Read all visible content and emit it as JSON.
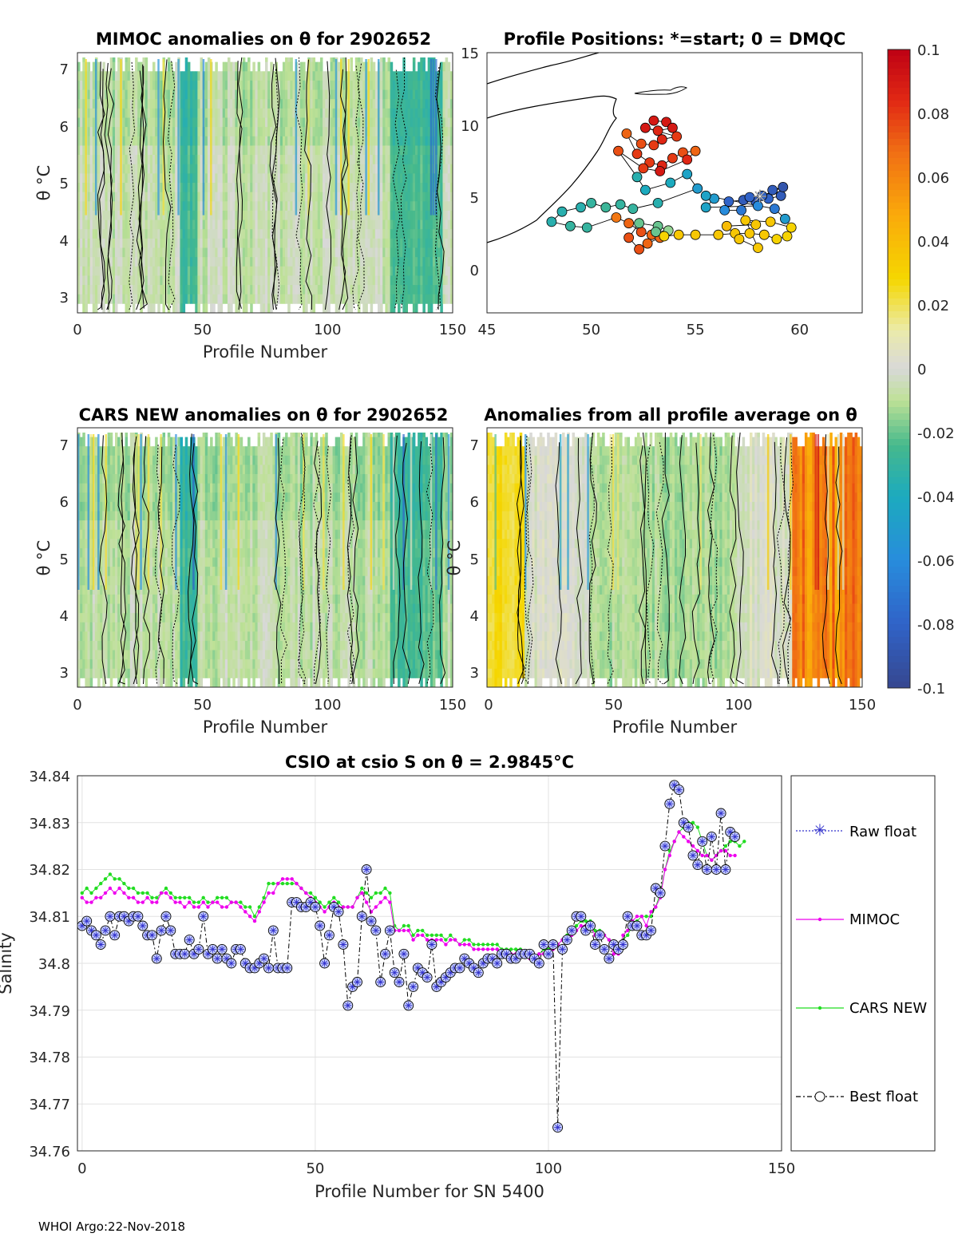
{
  "footer": "WHOI Argo:22-Nov-2018",
  "colorbar": {
    "ticks": [
      "0.1",
      "0.08",
      "0.06",
      "0.04",
      "0.02",
      "0",
      "-0.02",
      "-0.04",
      "-0.06",
      "-0.08",
      "-0.1"
    ],
    "range": [
      -0.1,
      0.1
    ]
  },
  "chart_data": [
    {
      "id": "mimoc",
      "type": "heatmap",
      "title": "MIMOC anomalies on θ  for 2902652",
      "xlabel": "Profile Number",
      "ylabel": "θ °C",
      "xticks": [
        "0",
        "50",
        "100",
        "150"
      ],
      "yticks": [
        "3",
        "4",
        "5",
        "6",
        "7"
      ],
      "xlim": [
        0,
        150
      ],
      "ylim": [
        2.75,
        7.3
      ],
      "seed": 3,
      "bias": -0.006,
      "ampl": 0.012
    },
    {
      "id": "positions",
      "type": "scatter",
      "title": "Profile Positions: *=start; 0 = DMQC",
      "xticks": [
        "45",
        "50",
        "55",
        "60"
      ],
      "yticks": [
        "0",
        "5",
        "10",
        "15"
      ],
      "xlim": [
        45,
        63
      ],
      "ylim": [
        -3,
        15
      ],
      "points": [
        [
          53.0,
          10.3,
          0.09
        ],
        [
          53.6,
          10.2,
          0.09
        ],
        [
          53.9,
          9.8,
          0.09
        ],
        [
          53.2,
          9.6,
          0.085
        ],
        [
          52.6,
          9.8,
          0.09
        ],
        [
          54.1,
          9.2,
          0.08
        ],
        [
          53.4,
          9.0,
          0.085
        ],
        [
          53.0,
          8.6,
          0.08
        ],
        [
          52.4,
          8.7,
          0.075
        ],
        [
          51.7,
          9.4,
          0.07
        ],
        [
          52.2,
          8.0,
          0.08
        ],
        [
          52.8,
          7.4,
          0.08
        ],
        [
          53.4,
          7.2,
          0.085
        ],
        [
          53.9,
          7.7,
          0.08
        ],
        [
          54.4,
          8.1,
          0.075
        ],
        [
          55.0,
          8.2,
          0.07
        ],
        [
          54.6,
          7.6,
          0.085
        ],
        [
          53.3,
          6.8,
          0.09
        ],
        [
          52.5,
          7.0,
          0.08
        ],
        [
          51.3,
          8.2,
          0.075
        ],
        [
          52.2,
          6.4,
          -0.035
        ],
        [
          52.6,
          5.5,
          -0.04
        ],
        [
          53.8,
          6.0,
          -0.04
        ],
        [
          54.6,
          6.6,
          -0.045
        ],
        [
          55.1,
          5.6,
          -0.05
        ],
        [
          53.2,
          4.6,
          -0.035
        ],
        [
          52.0,
          4.2,
          -0.03
        ],
        [
          51.4,
          4.5,
          -0.03
        ],
        [
          50.7,
          4.3,
          -0.028
        ],
        [
          50.0,
          4.6,
          -0.03
        ],
        [
          49.5,
          4.3,
          -0.035
        ],
        [
          48.6,
          4.0,
          -0.035
        ],
        [
          48.1,
          3.3,
          -0.035
        ],
        [
          49.0,
          3.0,
          -0.03
        ],
        [
          49.8,
          2.9,
          -0.03
        ],
        [
          51.2,
          3.6,
          0.065
        ],
        [
          51.8,
          3.2,
          0.07
        ],
        [
          52.4,
          2.6,
          0.075
        ],
        [
          52.9,
          2.4,
          0.07
        ],
        [
          53.3,
          2.2,
          0.07
        ],
        [
          52.7,
          1.8,
          0.07
        ],
        [
          52.3,
          1.4,
          0.075
        ],
        [
          51.8,
          2.2,
          0.075
        ],
        [
          52.3,
          3.2,
          -0.02
        ],
        [
          53.2,
          3.0,
          -0.02
        ],
        [
          53.7,
          2.7,
          -0.015
        ],
        [
          53.1,
          2.6,
          -0.02
        ],
        [
          53.5,
          2.3,
          0.03
        ],
        [
          54.2,
          2.4,
          0.035
        ],
        [
          55.0,
          2.4,
          0.035
        ],
        [
          56.1,
          2.4,
          0.035
        ],
        [
          56.9,
          2.5,
          0.035
        ],
        [
          57.6,
          2.5,
          0.035
        ],
        [
          58.3,
          2.4,
          0.035
        ],
        [
          58.9,
          2.1,
          0.03
        ],
        [
          59.4,
          2.3,
          0.03
        ],
        [
          59.6,
          2.9,
          0.03
        ],
        [
          58.6,
          3.3,
          0.035
        ],
        [
          57.4,
          3.4,
          0.035
        ],
        [
          57.9,
          3.1,
          0.035
        ],
        [
          56.5,
          3.0,
          0.04
        ],
        [
          57.1,
          2.1,
          0.035
        ],
        [
          58.0,
          1.5,
          0.035
        ],
        [
          57.2,
          4.1,
          -0.07
        ],
        [
          56.4,
          4.1,
          -0.06
        ],
        [
          56.6,
          4.7,
          -0.08
        ],
        [
          57.3,
          4.8,
          -0.085
        ],
        [
          57.9,
          4.7,
          -0.085
        ],
        [
          58.5,
          4.9,
          -0.08
        ],
        [
          59.1,
          5.1,
          -0.085
        ],
        [
          58.7,
          5.5,
          -0.085
        ],
        [
          59.2,
          5.7,
          -0.09
        ],
        [
          58.2,
          5.1,
          -0.08
        ],
        [
          57.6,
          5.0,
          -0.08
        ],
        [
          58.0,
          4.4,
          -0.06
        ],
        [
          55.5,
          4.3,
          -0.045
        ],
        [
          55.9,
          4.9,
          -0.05
        ],
        [
          55.5,
          5.1,
          -0.045
        ],
        [
          58.8,
          4.2,
          -0.07
        ],
        [
          59.3,
          3.5,
          -0.05
        ]
      ]
    },
    {
      "id": "cars",
      "type": "heatmap",
      "title": "CARS NEW anomalies on θ for 2902652",
      "xlabel": "Profile Number",
      "ylabel": "θ °C",
      "xticks": [
        "0",
        "50",
        "100",
        "150"
      ],
      "yticks": [
        "3",
        "4",
        "5",
        "6",
        "7"
      ],
      "xlim": [
        0,
        150
      ],
      "ylim": [
        2.75,
        7.3
      ],
      "seed": 7,
      "bias": -0.008,
      "ampl": 0.012
    },
    {
      "id": "allavg",
      "type": "heatmap",
      "title": "Anomalies from all profile average on θ",
      "xlabel": "Profile Number",
      "ylabel": "θ °C",
      "xticks": [
        "0",
        "50",
        "100",
        "150"
      ],
      "yticks": [
        "3",
        "4",
        "5",
        "6",
        "7"
      ],
      "xlim": [
        0,
        150
      ],
      "ylim": [
        2.75,
        7.3
      ],
      "seed": 11,
      "bias": 0.0,
      "ampl": 0.012
    },
    {
      "id": "salinity",
      "type": "line",
      "title": "CSIO at csio S on θ = 2.9845°C",
      "xlabel": "Profile Number for SN 5400",
      "ylabel": "Salinity",
      "xticks": [
        "0",
        "50",
        "100",
        "150"
      ],
      "yticks": [
        "34.76",
        "34.77",
        "34.78",
        "34.79",
        "34.8",
        "34.81",
        "34.82",
        "34.83",
        "34.84"
      ],
      "xlim": [
        -1,
        150
      ],
      "ylim": [
        34.76,
        34.84
      ],
      "legend": [
        "Raw float",
        "MIMOC",
        "CARS NEW",
        "Best float"
      ],
      "series": [
        {
          "name": "Best float",
          "values": [
            34.808,
            34.809,
            34.807,
            34.806,
            34.804,
            34.807,
            34.81,
            34.806,
            34.81,
            34.81,
            34.809,
            34.81,
            34.81,
            34.808,
            34.806,
            34.806,
            34.801,
            34.807,
            34.81,
            34.807,
            34.802,
            34.802,
            34.802,
            34.805,
            34.802,
            34.803,
            34.81,
            34.802,
            34.803,
            34.801,
            34.803,
            34.801,
            34.8,
            34.803,
            34.803,
            34.8,
            34.799,
            34.799,
            34.8,
            34.801,
            34.799,
            34.807,
            34.799,
            34.799,
            34.799,
            34.813,
            34.813,
            34.812,
            34.812,
            34.813,
            34.812,
            34.808,
            34.8,
            34.806,
            34.812,
            34.811,
            34.804,
            34.791,
            34.795,
            34.796,
            34.81,
            34.82,
            34.809,
            34.807,
            34.796,
            34.802,
            34.807,
            34.798,
            34.796,
            34.802,
            34.791,
            34.795,
            34.799,
            34.798,
            34.797,
            34.804,
            34.795,
            34.796,
            34.797,
            34.798,
            34.799,
            34.799,
            34.801,
            34.8,
            34.799,
            34.798,
            34.8,
            34.801,
            34.801,
            34.8,
            34.802,
            34.802,
            34.801,
            34.801,
            34.802,
            34.802,
            34.802,
            34.801,
            34.8,
            34.804,
            34.802,
            34.804,
            34.765,
            34.803,
            34.805,
            34.807,
            34.81,
            34.81,
            34.807,
            34.808,
            34.804,
            34.806,
            34.803,
            34.801,
            34.804,
            34.803,
            34.804,
            34.81,
            34.808,
            34.808,
            34.806,
            34.806,
            34.807,
            34.816,
            34.815,
            34.825,
            34.834,
            34.838,
            34.837,
            34.83,
            34.829,
            34.823,
            34.821,
            34.826,
            34.82,
            34.827,
            34.82,
            34.832,
            34.82,
            34.828,
            34.827
          ]
        },
        {
          "name": "MIMOC",
          "values": [
            34.814,
            34.813,
            34.813,
            34.814,
            34.814,
            34.815,
            34.816,
            34.815,
            34.816,
            34.815,
            34.814,
            34.814,
            34.813,
            34.813,
            34.814,
            34.813,
            34.813,
            34.815,
            34.815,
            34.814,
            34.813,
            34.813,
            34.812,
            34.813,
            34.812,
            34.812,
            34.813,
            34.812,
            34.813,
            34.813,
            34.812,
            34.812,
            34.813,
            34.813,
            34.812,
            34.811,
            34.81,
            34.809,
            34.811,
            34.813,
            34.815,
            34.815,
            34.817,
            34.818,
            34.818,
            34.818,
            34.817,
            34.816,
            34.815,
            34.814,
            34.813,
            34.812,
            34.811,
            34.812,
            34.813,
            34.812,
            34.812,
            34.812,
            34.812,
            34.814,
            34.815,
            34.813,
            34.811,
            34.812,
            34.813,
            34.814,
            34.813,
            34.807,
            34.807,
            34.807,
            34.807,
            34.805,
            34.806,
            34.806,
            34.805,
            34.805,
            34.805,
            34.805,
            34.804,
            34.805,
            34.805,
            34.804,
            34.804,
            34.804,
            34.803,
            34.803,
            34.803,
            34.803,
            34.803,
            34.803,
            34.802,
            34.802,
            34.802,
            34.802,
            34.802,
            34.802,
            34.801,
            34.801,
            34.802,
            34.802,
            34.802,
            34.803,
            34.804,
            34.805,
            34.805,
            34.806,
            34.807,
            34.808,
            34.808,
            34.808,
            34.806,
            34.806,
            34.806,
            34.805,
            34.802,
            34.802,
            34.806,
            34.807,
            34.809,
            34.81,
            34.81,
            34.808,
            34.811,
            34.812,
            34.814,
            34.82,
            34.823,
            34.826,
            34.828,
            34.827,
            34.826,
            34.825,
            34.824,
            34.823,
            34.823,
            34.822,
            34.823,
            34.824,
            34.824,
            34.823,
            34.823
          ]
        },
        {
          "name": "CARS NEW",
          "values": [
            34.815,
            34.816,
            34.815,
            34.816,
            34.817,
            34.818,
            34.819,
            34.818,
            34.818,
            34.817,
            34.816,
            34.816,
            34.815,
            34.815,
            34.815,
            34.814,
            34.814,
            34.815,
            34.816,
            34.815,
            34.814,
            34.814,
            34.814,
            34.814,
            34.813,
            34.813,
            34.814,
            34.813,
            34.813,
            34.814,
            34.814,
            34.814,
            34.813,
            34.813,
            34.813,
            34.812,
            34.812,
            34.81,
            34.812,
            34.814,
            34.817,
            34.817,
            34.817,
            34.817,
            34.817,
            34.817,
            34.817,
            34.816,
            34.815,
            34.815,
            34.814,
            34.813,
            34.812,
            34.813,
            34.814,
            34.813,
            34.812,
            34.812,
            34.812,
            34.814,
            34.816,
            34.815,
            34.814,
            34.815,
            34.815,
            34.816,
            34.815,
            34.808,
            34.807,
            34.808,
            34.808,
            34.806,
            34.807,
            34.807,
            34.806,
            34.806,
            34.806,
            34.806,
            34.805,
            34.806,
            34.805,
            34.804,
            34.805,
            34.805,
            34.804,
            34.804,
            34.804,
            34.804,
            34.804,
            34.804,
            34.803,
            34.803,
            34.803,
            34.803,
            34.803,
            34.802,
            34.802,
            34.801,
            34.802,
            34.803,
            34.803,
            34.804,
            34.804,
            34.805,
            34.806,
            34.807,
            34.808,
            34.809,
            34.809,
            34.809,
            34.807,
            34.807,
            34.806,
            34.805,
            34.803,
            34.803,
            34.805,
            34.806,
            34.808,
            34.809,
            34.81,
            34.81,
            34.81,
            34.812,
            34.815,
            34.82,
            34.824,
            34.826,
            34.828,
            34.829,
            34.83,
            34.83,
            34.829,
            34.826,
            34.823,
            34.822,
            34.823,
            34.824,
            34.825,
            34.826,
            34.826,
            34.825,
            34.826
          ]
        }
      ]
    }
  ]
}
